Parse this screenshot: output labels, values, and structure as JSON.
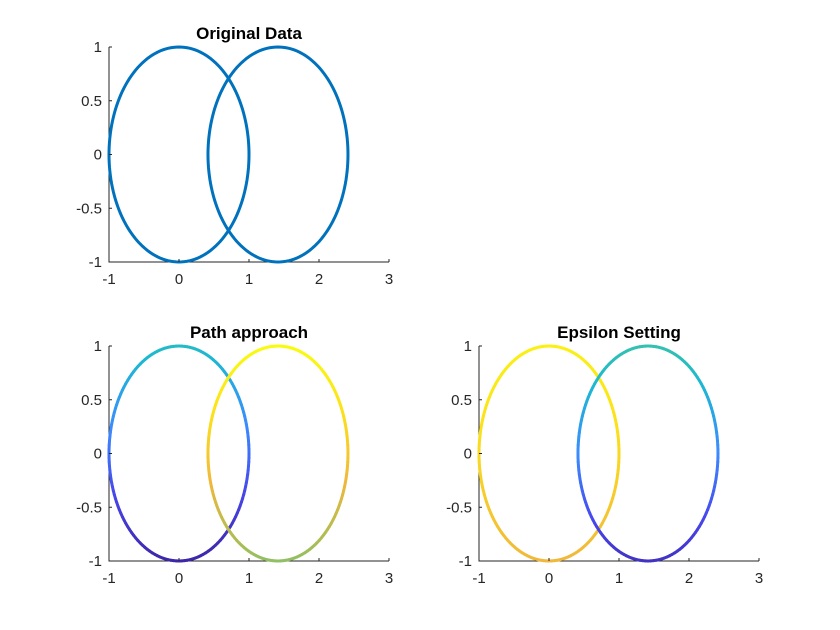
{
  "chart_data": [
    {
      "type": "line",
      "title": "Original Data",
      "xlim": [
        -1,
        3
      ],
      "ylim": [
        -1,
        1
      ],
      "xticks": [
        "-1",
        "0",
        "1",
        "2",
        "3"
      ],
      "yticks": [
        "-1",
        "-0.5",
        "0",
        "0.5",
        "1"
      ],
      "coloring": "solid",
      "color": "#0072BD",
      "series": [
        {
          "shape": "ellipse",
          "cx": 0,
          "cy": 0,
          "rx": 1,
          "ry": 1
        },
        {
          "shape": "ellipse",
          "cx": 1.414,
          "cy": 0,
          "rx": 1,
          "ry": 1
        }
      ]
    },
    {
      "type": "line",
      "title": "Path approach",
      "xlim": [
        -1,
        3
      ],
      "ylim": [
        -1,
        1
      ],
      "xticks": [
        "-1",
        "0",
        "1",
        "2",
        "3"
      ],
      "yticks": [
        "-1",
        "-0.5",
        "0",
        "0.5",
        "1"
      ],
      "coloring": "colormap",
      "colormap": [
        "#3e26a8",
        "#4746eb",
        "#3c8bff",
        "#1cb8d2",
        "#43c69b",
        "#a4be56",
        "#f1b83b",
        "#fbe11b",
        "#f9fb0e"
      ],
      "series": [
        {
          "shape": "ellipse",
          "cx": 0,
          "cy": 0,
          "rx": 1,
          "ry": 1,
          "color_range": [
            0,
            0.4
          ]
        },
        {
          "shape": "ellipse",
          "cx": 1.414,
          "cy": 0,
          "rx": 1,
          "ry": 1,
          "color_range": [
            0.6,
            1
          ]
        }
      ]
    },
    {
      "type": "line",
      "title": "Epsilon Setting",
      "xlim": [
        -1,
        3
      ],
      "ylim": [
        -1,
        1
      ],
      "xticks": [
        "-1",
        "0",
        "1",
        "2",
        "3"
      ],
      "yticks": [
        "-1",
        "-0.5",
        "0",
        "0.5",
        "1"
      ],
      "coloring": "colormap",
      "colormap": [
        "#3e26a8",
        "#4746eb",
        "#3c8bff",
        "#1cb8d2",
        "#43c69b",
        "#a4be56",
        "#f1b83b",
        "#fbe11b",
        "#f9fb0e"
      ],
      "series": [
        {
          "shape": "ellipse",
          "cx": 0,
          "cy": 0,
          "rx": 1,
          "ry": 1,
          "color_range": [
            0.75,
            0.95
          ]
        },
        {
          "shape": "ellipse",
          "cx": 1.414,
          "cy": 0,
          "rx": 1,
          "ry": 1,
          "color_range": [
            0.05,
            0.45
          ]
        }
      ]
    }
  ]
}
